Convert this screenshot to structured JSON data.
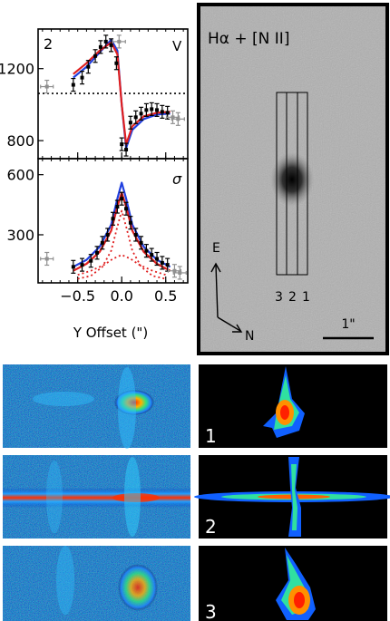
{
  "chart_data": [
    {
      "type": "scatter",
      "panel_label": "2",
      "corner_label": "V",
      "ylim": [
        700,
        1420
      ],
      "yticks": [
        800,
        1200
      ],
      "xlim": [
        -0.95,
        0.75
      ],
      "reference_line_y": 1062,
      "series": [
        {
          "name": "",
          "marker": "error-bar-black",
          "x": [
            -0.55,
            -0.45,
            -0.38,
            -0.3,
            -0.24,
            -0.18,
            -0.12,
            -0.06,
            0.0,
            0.05,
            0.1,
            0.16,
            0.22,
            0.28,
            0.34,
            0.4,
            0.46,
            0.52
          ],
          "y": [
            1110,
            1150,
            1210,
            1270,
            1320,
            1350,
            1330,
            1230,
            780,
            750,
            900,
            930,
            950,
            970,
            975,
            970,
            960,
            955
          ]
        },
        {
          "name": "",
          "marker": "error-bar-gray",
          "x": [
            -0.85,
            -0.03,
            0.58,
            0.64
          ],
          "y": [
            1100,
            1350,
            930,
            920
          ]
        }
      ],
      "models": [
        {
          "color": "#2040e0",
          "x": [
            -0.55,
            -0.4,
            -0.25,
            -0.12,
            -0.05,
            0.0,
            0.05,
            0.12,
            0.25,
            0.4,
            0.55
          ],
          "y": [
            1150,
            1210,
            1290,
            1360,
            1300,
            1000,
            760,
            860,
            920,
            945,
            950
          ]
        },
        {
          "color": "#e02020",
          "x": [
            -0.55,
            -0.4,
            -0.25,
            -0.12,
            -0.05,
            0.0,
            0.05,
            0.12,
            0.25,
            0.4,
            0.55
          ],
          "y": [
            1170,
            1230,
            1300,
            1345,
            1280,
            1000,
            780,
            880,
            935,
            955,
            960
          ]
        }
      ]
    },
    {
      "type": "scatter",
      "corner_label": "σ",
      "ylim": [
        60,
        680
      ],
      "yticks": [
        300,
        600
      ],
      "xticks": [
        -0.5,
        0.0,
        0.5
      ],
      "xtick_labels": [
        "−0.5",
        "0.0",
        "0.5"
      ],
      "xlim": [
        -0.95,
        0.75
      ],
      "xlabel": "Y Offset (\")",
      "series": [
        {
          "name": "",
          "marker": "error-bar-black",
          "x": [
            -0.55,
            -0.45,
            -0.35,
            -0.28,
            -0.22,
            -0.16,
            -0.1,
            -0.05,
            0.0,
            0.05,
            0.1,
            0.16,
            0.22,
            0.28,
            0.34,
            0.4,
            0.46,
            0.52
          ],
          "y": [
            140,
            150,
            170,
            210,
            260,
            300,
            380,
            440,
            480,
            430,
            360,
            300,
            260,
            220,
            200,
            180,
            160,
            150
          ]
        },
        {
          "name": "",
          "marker": "error-bar-gray",
          "x": [
            -0.85,
            0.6,
            0.66
          ],
          "y": [
            180,
            120,
            110
          ]
        }
      ],
      "models": [
        {
          "color": "#2040e0",
          "x": [
            -0.55,
            -0.4,
            -0.25,
            -0.12,
            -0.05,
            0.0,
            0.05,
            0.12,
            0.25,
            0.4,
            0.55
          ],
          "y": [
            140,
            175,
            240,
            350,
            480,
            560,
            480,
            350,
            240,
            175,
            140
          ]
        },
        {
          "color": "#e02020",
          "x": [
            -0.55,
            -0.4,
            -0.25,
            -0.12,
            -0.05,
            0.0,
            0.05,
            0.12,
            0.25,
            0.4,
            0.55
          ],
          "y": [
            120,
            155,
            215,
            320,
            440,
            510,
            440,
            320,
            215,
            155,
            120
          ]
        },
        {
          "color": "#e02020",
          "dashed": true,
          "x": [
            -0.5,
            -0.35,
            -0.22,
            -0.12,
            -0.05,
            0.0,
            0.05,
            0.12,
            0.22,
            0.35,
            0.5
          ],
          "y": [
            80,
            95,
            140,
            220,
            340,
            420,
            340,
            220,
            140,
            95,
            80
          ]
        },
        {
          "color": "#e02020",
          "dashed": true,
          "x": [
            -0.5,
            -0.35,
            -0.2,
            -0.1,
            0.0,
            0.1,
            0.2,
            0.35,
            0.5
          ],
          "y": [
            100,
            120,
            150,
            180,
            200,
            180,
            150,
            120,
            100
          ]
        }
      ]
    }
  ],
  "image_panel": {
    "title": "Hα + [N II]",
    "slit_labels": [
      "3",
      "2",
      "1"
    ],
    "compass_east": "E",
    "compass_north": "N",
    "scalebar_label": "1\""
  },
  "spectra_panels": {
    "model_labels": [
      "1",
      "2",
      "3"
    ]
  }
}
